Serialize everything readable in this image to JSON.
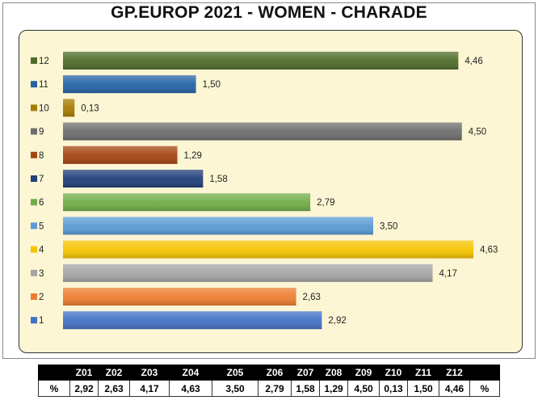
{
  "title": "GP.EUROP 2021 - WOMEN  - CHARADE",
  "chart_data": {
    "type": "bar",
    "orientation": "horizontal",
    "categories": [
      "12",
      "11",
      "10",
      "9",
      "8",
      "7",
      "6",
      "5",
      "4",
      "3",
      "2",
      "1"
    ],
    "values": [
      4.46,
      1.5,
      0.13,
      4.5,
      1.29,
      1.58,
      2.79,
      3.5,
      4.63,
      4.17,
      2.63,
      2.92
    ],
    "value_labels": [
      "4,46",
      "1,50",
      "0,13",
      "4,50",
      "1,29",
      "1,58",
      "2,79",
      "3,50",
      "4,63",
      "4,17",
      "2,63",
      "2,92"
    ],
    "colors": [
      "#4f6d2a",
      "#2563a6",
      "#a67c05",
      "#6e6e6e",
      "#a64512",
      "#223f7a",
      "#72ad47",
      "#5b9bd5",
      "#f5c400",
      "#a5a5a5",
      "#ed7d31",
      "#4472c4"
    ],
    "xlim": [
      0,
      4.63
    ],
    "grid": false,
    "legend": "left"
  },
  "table": {
    "headers": [
      "",
      "Z01",
      "Z02",
      "Z03",
      "Z04",
      "Z05",
      "Z06",
      "Z07",
      "Z08",
      "Z09",
      "Z10",
      "Z11",
      "Z12",
      ""
    ],
    "row": [
      "%",
      "2,92",
      "2,63",
      "4,17",
      "4,63",
      "3,50",
      "2,79",
      "1,58",
      "1,29",
      "4,50",
      "0,13",
      "1,50",
      "4,46",
      "%"
    ]
  }
}
